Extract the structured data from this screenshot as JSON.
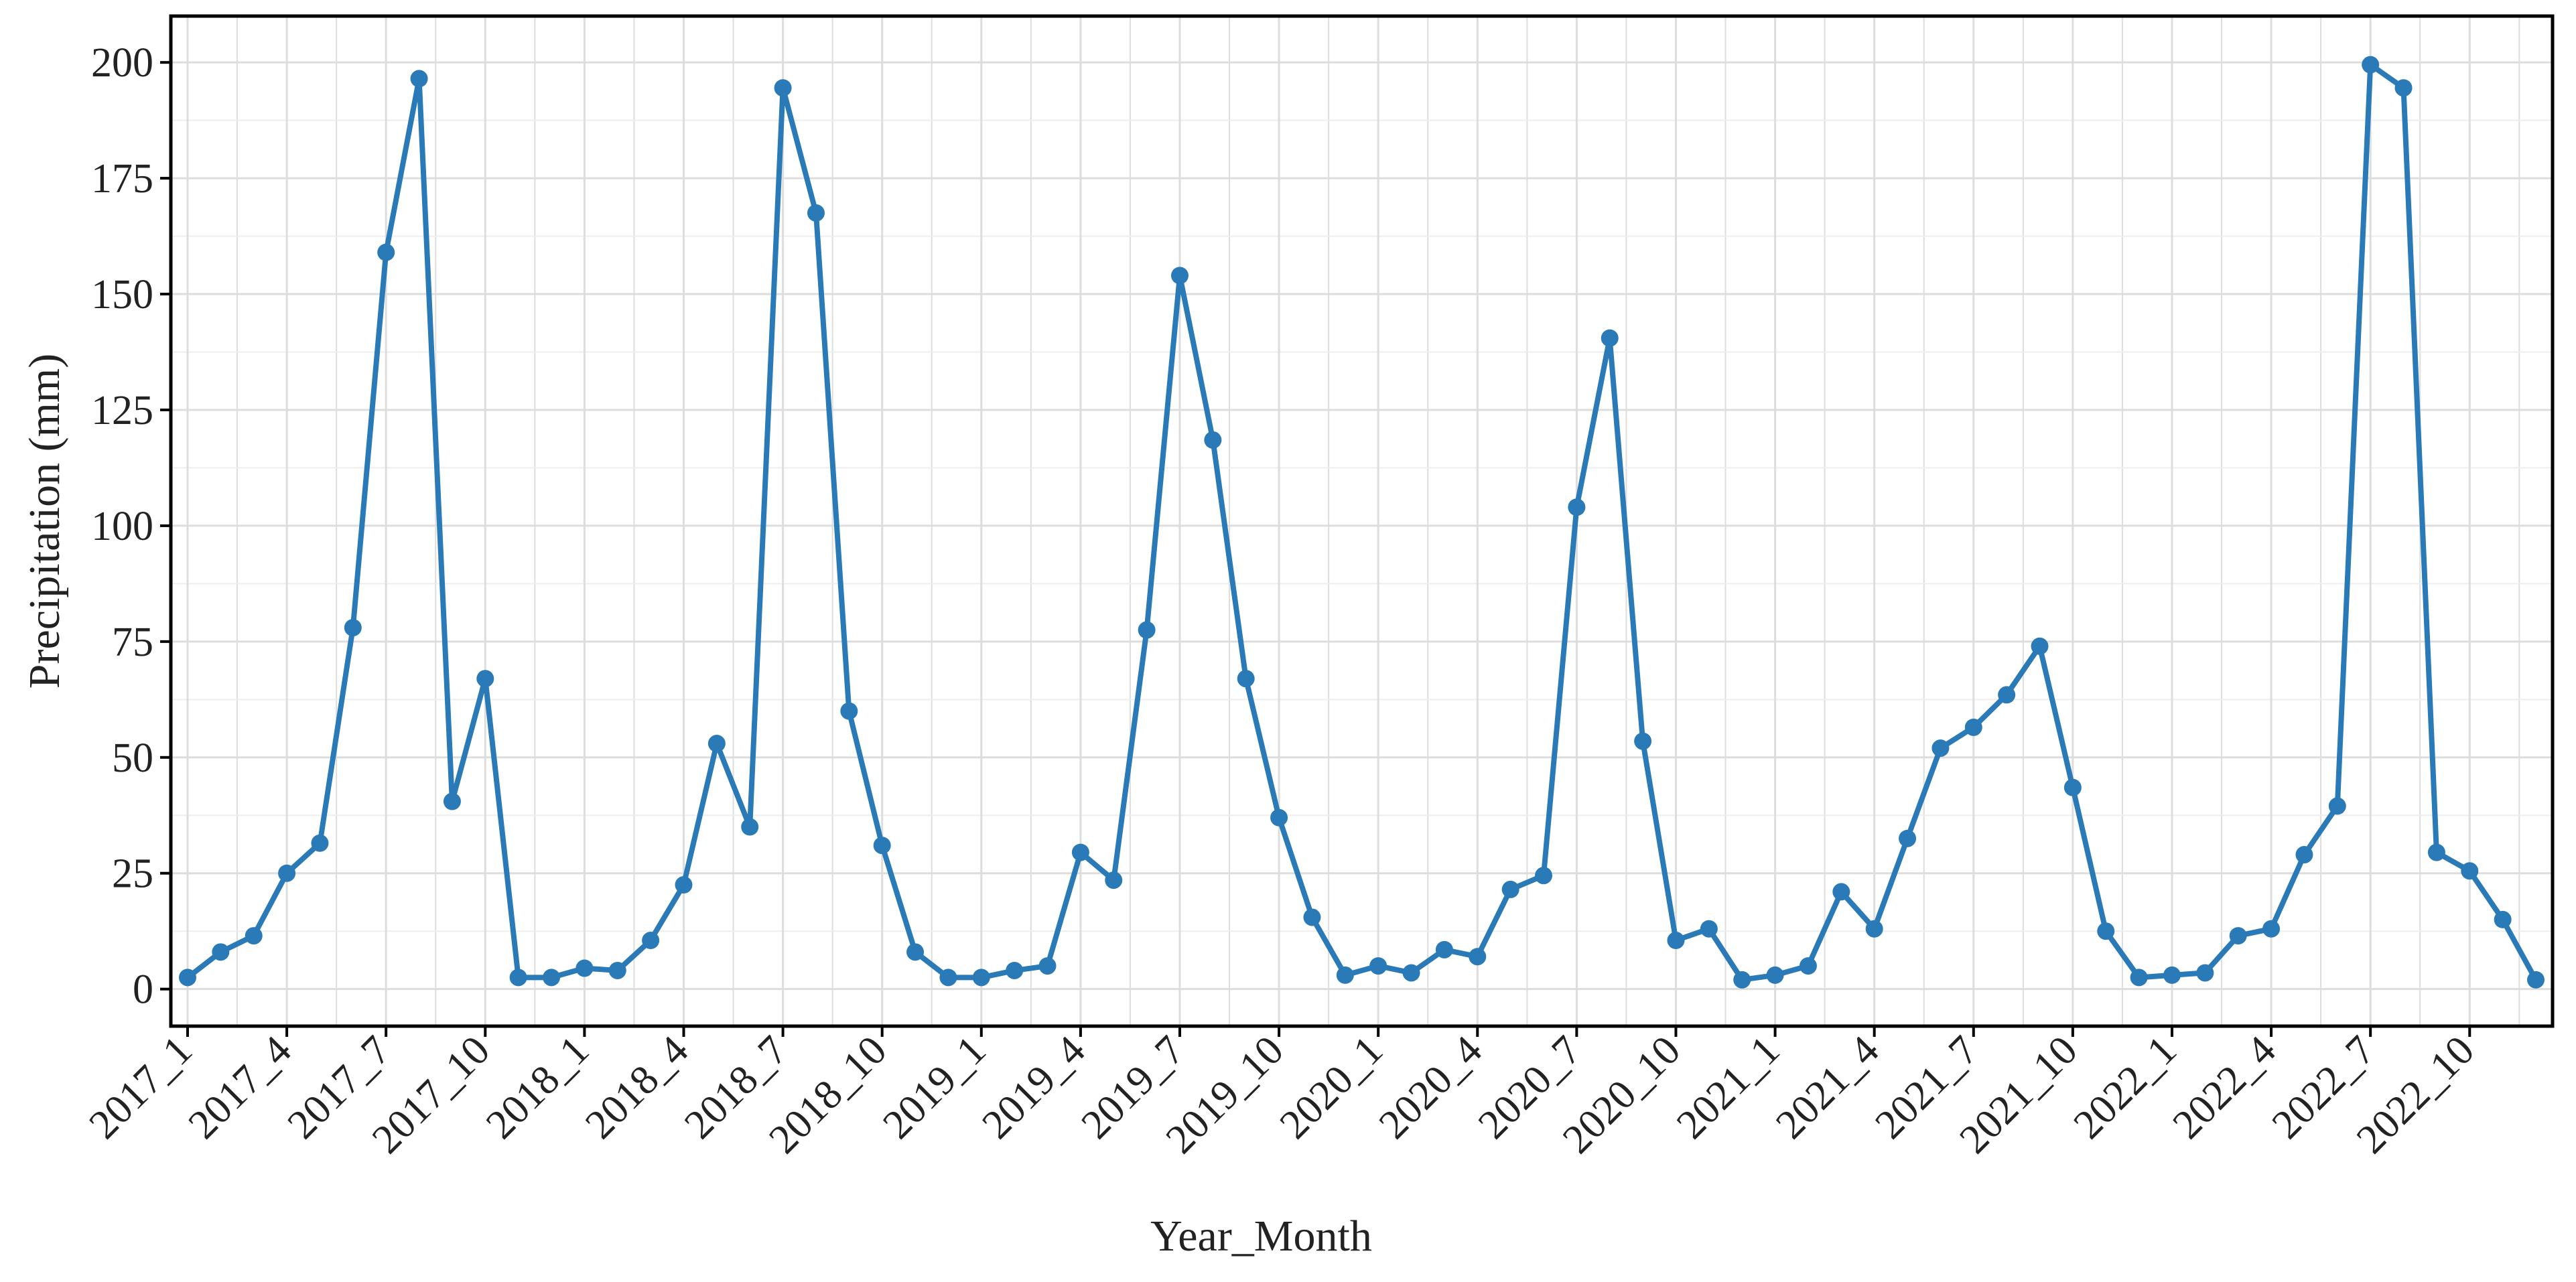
{
  "chart_data": {
    "type": "line",
    "title": "",
    "xlabel": "Year_Month",
    "ylabel": "Precipitation (mm)",
    "ylim": [
      -8,
      210
    ],
    "yticks": [
      0,
      25,
      50,
      75,
      100,
      125,
      150,
      175,
      200
    ],
    "grid": true,
    "legend": "none",
    "colors": {
      "series": "#2a7ab8",
      "grid": "#dddddd",
      "frame": "#000000"
    },
    "x_tick_labels": [
      "2017_1",
      "2017_4",
      "2017_7",
      "2017_10",
      "2018_1",
      "2018_4",
      "2018_7",
      "2018_10",
      "2019_1",
      "2019_4",
      "2019_7",
      "2019_10",
      "2020_1",
      "2020_4",
      "2020_7",
      "2020_10",
      "2021_1",
      "2021_4",
      "2021_7",
      "2021_10",
      "2022_1",
      "2022_4",
      "2022_7",
      "2022_10"
    ],
    "categories": [
      "2017_1",
      "2017_2",
      "2017_3",
      "2017_4",
      "2017_5",
      "2017_6",
      "2017_7",
      "2017_8",
      "2017_9",
      "2017_10",
      "2017_11",
      "2017_12",
      "2018_1",
      "2018_2",
      "2018_3",
      "2018_4",
      "2018_5",
      "2018_6",
      "2018_7",
      "2018_8",
      "2018_9",
      "2018_10",
      "2018_11",
      "2018_12",
      "2019_1",
      "2019_2",
      "2019_3",
      "2019_4",
      "2019_5",
      "2019_6",
      "2019_7",
      "2019_8",
      "2019_9",
      "2019_10",
      "2019_11",
      "2019_12",
      "2020_1",
      "2020_2",
      "2020_3",
      "2020_4",
      "2020_5",
      "2020_6",
      "2020_7",
      "2020_8",
      "2020_9",
      "2020_10",
      "2020_11",
      "2020_12",
      "2021_1",
      "2021_2",
      "2021_3",
      "2021_4",
      "2021_5",
      "2021_6",
      "2021_7",
      "2021_8",
      "2021_9",
      "2021_10",
      "2021_11",
      "2021_12",
      "2022_1",
      "2022_2",
      "2022_3",
      "2022_4",
      "2022_5",
      "2022_6",
      "2022_7",
      "2022_8",
      "2022_9",
      "2022_10",
      "2022_11",
      "2022_12"
    ],
    "series": [
      {
        "values": [
          2.5,
          8,
          11.5,
          25,
          31.5,
          78,
          159,
          196.5,
          40.5,
          67,
          2.5,
          2.5,
          4.5,
          4,
          10.5,
          22.5,
          53,
          35,
          194.5,
          167.5,
          60,
          31,
          8,
          2.5,
          2.5,
          4,
          5,
          29.5,
          23.5,
          77.5,
          154,
          118.5,
          67,
          37,
          15.5,
          3,
          5,
          3.5,
          8.5,
          7,
          21.5,
          24.5,
          104,
          140.5,
          53.5,
          10.5,
          13,
          2,
          3,
          5,
          21,
          13,
          32.5,
          52,
          56.5,
          63.5,
          74,
          43.5,
          12.5,
          2.5,
          3,
          3.5,
          11.5,
          13,
          29,
          39.5,
          199.5,
          194.5,
          29.5,
          25.5,
          15,
          2
        ]
      }
    ]
  }
}
